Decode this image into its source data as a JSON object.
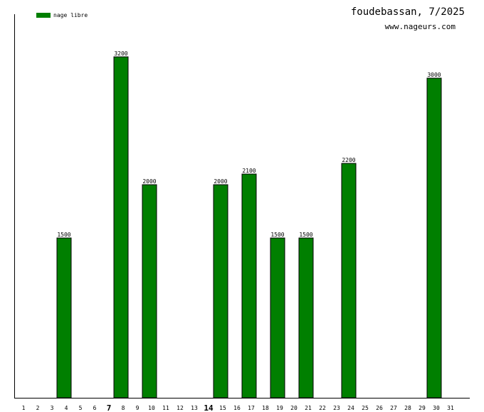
{
  "header": {
    "title": "foudebassan, 7/2025",
    "site": "www.nageurs.com"
  },
  "colors": {
    "bar": "#007f00",
    "axis": "#000000"
  },
  "chart_data": {
    "type": "bar",
    "categories": [
      "1",
      "2",
      "3",
      "4",
      "5",
      "6",
      "7",
      "8",
      "9",
      "10",
      "11",
      "12",
      "13",
      "14",
      "15",
      "16",
      "17",
      "18",
      "19",
      "20",
      "21",
      "22",
      "23",
      "24",
      "25",
      "26",
      "27",
      "28",
      "29",
      "30",
      "31"
    ],
    "bold_categories": [
      "7",
      "14"
    ],
    "series": [
      {
        "name": "nage libre",
        "values": [
          0,
          0,
          1500,
          0,
          0,
          0,
          3200,
          0,
          2000,
          0,
          0,
          0,
          0,
          2000,
          0,
          2100,
          0,
          1500,
          0,
          1500,
          0,
          0,
          2200,
          0,
          0,
          0,
          0,
          0,
          3000,
          0,
          0
        ]
      }
    ],
    "ylim": [
      0,
      3600
    ],
    "legend": "top-left",
    "grid": false
  }
}
